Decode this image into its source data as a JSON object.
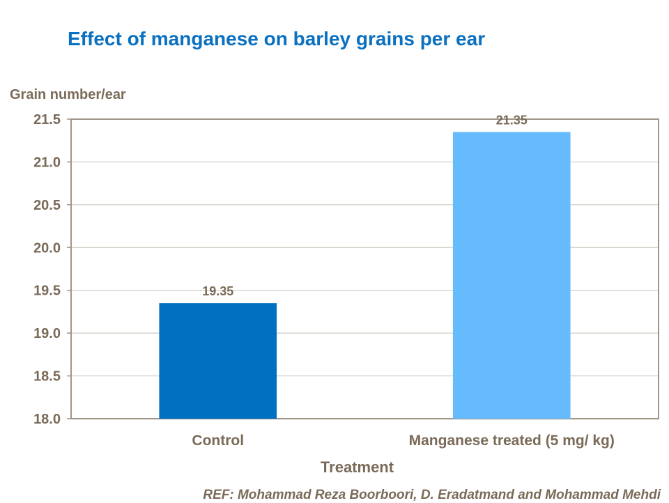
{
  "chart_data": {
    "type": "bar",
    "title": "Effect of manganese on barley grains per ear",
    "ylabel": "Grain number/ear",
    "xlabel": "Treatment",
    "categories": [
      "Control",
      "Manganese treated (5 mg/ kg)"
    ],
    "values": [
      19.35,
      21.35
    ],
    "data_labels": [
      "19.35",
      "21.35"
    ],
    "colors": [
      "#0070c0",
      "#66bbff"
    ],
    "ylim": [
      18.0,
      21.5
    ],
    "yticks": [
      "18.0",
      "18.5",
      "19.0",
      "19.5",
      "20.0",
      "20.5",
      "21.0",
      "21.5"
    ],
    "grid": true,
    "legend": "none"
  },
  "reference": "REF: Mohammad Reza Boorboori,  D. Eradatmand and Mohammad Mehdi"
}
